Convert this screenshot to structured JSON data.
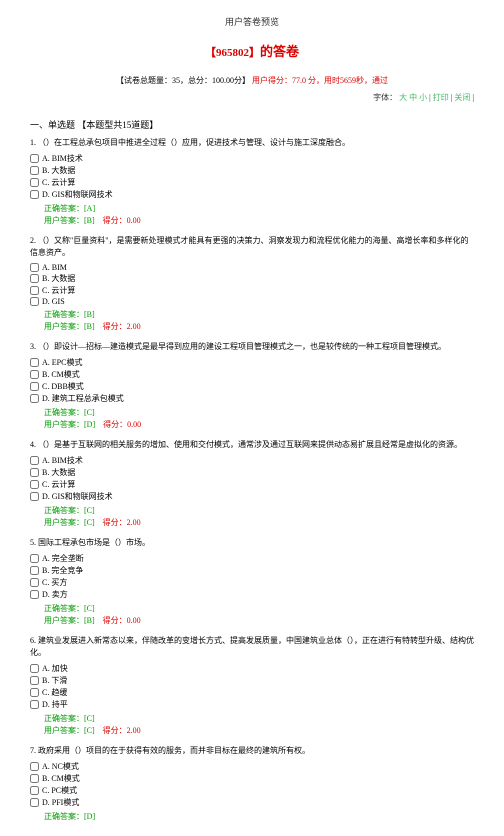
{
  "page_title": "用户答卷预览",
  "exam_id_label": "【965802】",
  "exam_suffix": "的答卷",
  "meta_black": "【试卷总题量：35，总分：100.00分】",
  "meta_red_part1": "用户得分：77.0 分，用时5659秒，通过",
  "tools_prefix": "字体：",
  "tools_large": "大",
  "tools_medium": "中",
  "tools_small": "小",
  "tools_print": "打印",
  "tools_close": "关闭",
  "section": "一、单选题 【本题型共15道题】",
  "correct_label": "正确答案：",
  "user_label": "用户答案：",
  "score_label": "得分：",
  "questions": [
    {
      "num": "1.",
      "text": "（）在工程总承包项目中推进全过程（）应用，促进技术与管理、设计与施工深度融合。",
      "options": [
        "A. BIM技术",
        "B. 大数据",
        "C. 云计算",
        "D. GIS和物联网技术"
      ],
      "correct": "[A]",
      "user": "[B]",
      "score": "0.00"
    },
    {
      "num": "2.",
      "text": "（）又称\"巨量资料\"，是需要新处理模式才能具有更强的决策力、洞察发现力和流程优化能力的海量、高增长率和多样化的信息资产。",
      "options": [
        "A. BIM",
        "B. 大数据",
        "C. 云计算",
        "D. GIS"
      ],
      "correct": "[B]",
      "user": "[B]",
      "score": "2.00"
    },
    {
      "num": "3.",
      "text": "（）即设计—招标—建造模式是最早得到应用的建设工程项目管理模式之一，也是较传统的一种工程项目管理模式。",
      "options": [
        "A. EPC模式",
        "B. CM模式",
        "C. DBB模式",
        "D. 建筑工程总承包模式"
      ],
      "correct": "[C]",
      "user": "[D]",
      "score": "0.00"
    },
    {
      "num": "4.",
      "text": "（）是基于互联网的相关服务的增加、使用和交付模式，通常涉及通过互联网来提供动态易扩展且经常是虚拟化的资源。",
      "options": [
        "A. BIM技术",
        "B. 大数据",
        "C. 云计算",
        "D. GIS和物联网技术"
      ],
      "correct": "[C]",
      "user": "[C]",
      "score": "2.00"
    },
    {
      "num": "5.",
      "text": "国际工程承包市场是（）市场。",
      "options": [
        "A. 完全垄断",
        "B. 完全竞争",
        "C. 买方",
        "D. 卖方"
      ],
      "correct": "[C]",
      "user": "[B]",
      "score": "0.00"
    },
    {
      "num": "6.",
      "text": "建筑业发展进入新常态以来，伴随改革的变增长方式、提高发展质量，中国建筑业总体（），正在进行有特转型升级、结构优化。",
      "options": [
        "A. 加快",
        "B. 下滑",
        "C. 趋缓",
        "D. 持平"
      ],
      "correct": "[C]",
      "user": "[C]",
      "score": "2.00"
    },
    {
      "num": "7.",
      "text": "政府采用（）项目的在于获得有效的服务，而并非目标在最终的建筑所有权。",
      "options": [
        "A. NC模式",
        "B. CM模式",
        "C. PC模式",
        "D. PFI模式"
      ],
      "correct": "[D]",
      "user": "",
      "score": ""
    }
  ]
}
